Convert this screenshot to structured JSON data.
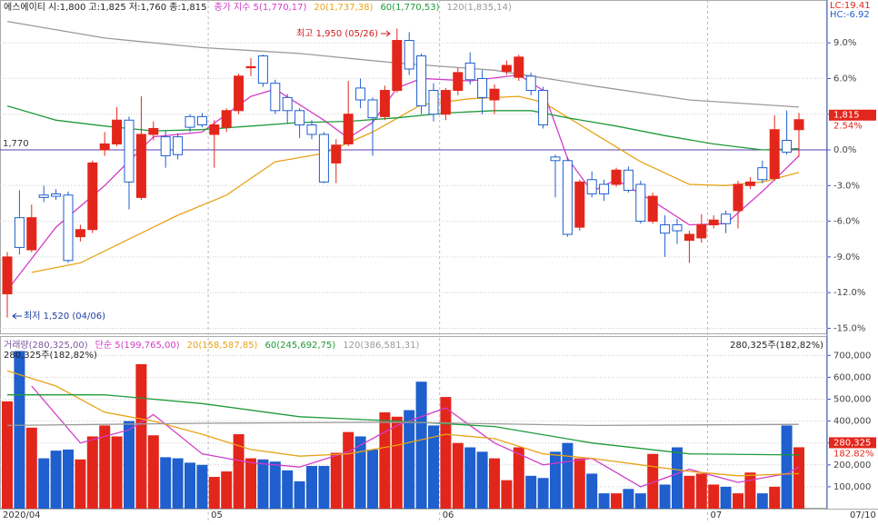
{
  "chart_data": [
    {
      "type": "candlestick",
      "title": "에스에이티 시:1,800 고:1,825 저:1,760 종:1,815",
      "categories": [
        "2020/04",
        null,
        null,
        null,
        null,
        null,
        null,
        null,
        null,
        null,
        null,
        null,
        null,
        null,
        null,
        null,
        null,
        "05",
        null,
        null,
        null,
        null,
        null,
        null,
        null,
        null,
        null,
        null,
        null,
        null,
        null,
        null,
        null,
        null,
        null,
        null,
        "06",
        null,
        null,
        null,
        null,
        null,
        null,
        null,
        null,
        null,
        null,
        null,
        null,
        null,
        null,
        null,
        null,
        null,
        null,
        null,
        null,
        null,
        "07",
        null,
        null,
        null,
        null,
        null,
        null,
        null
      ],
      "last_date": "07/10",
      "open": [
        -12.1,
        -5.7,
        -8.4,
        -3.8,
        -3.7,
        -3.8,
        -7.3,
        -6.7,
        0.0,
        0.5,
        2.5,
        -4.0,
        1.3,
        1.1,
        1.1,
        2.8,
        2.8,
        1.3,
        1.9,
        3.3,
        6.9,
        7.9,
        5.6,
        4.4,
        3.3,
        2.1,
        1.3,
        -1.1,
        0.5,
        5.2,
        4.2,
        2.8,
        5.0,
        9.2,
        7.9,
        5.0,
        3.0,
        5.0,
        7.3,
        6.0,
        4.2,
        6.6,
        6.1,
        6.2,
        5.0,
        -0.6,
        -0.9,
        -6.5,
        -2.5,
        -2.9,
        -2.9,
        -1.7,
        -2.9,
        -6.0,
        -6.3,
        -6.3,
        -7.6,
        -7.4,
        -6.3,
        -5.4,
        -5.1,
        -3.0,
        -1.5,
        -2.4,
        0.8,
        1.7
      ],
      "high": [
        -8.6,
        -3.4,
        -4.6,
        -3.0,
        -3.3,
        -3.5,
        -6.3,
        -0.9,
        1.5,
        3.6,
        2.8,
        4.5,
        2.4,
        1.6,
        1.4,
        3.0,
        3.1,
        2.5,
        3.5,
        6.4,
        7.7,
        8.0,
        5.9,
        4.7,
        3.5,
        2.5,
        1.5,
        0.9,
        5.8,
        6.0,
        4.4,
        5.4,
        10.2,
        9.9,
        8.1,
        5.6,
        5.2,
        6.9,
        8.2,
        6.7,
        5.5,
        7.5,
        8.0,
        6.5,
        5.3,
        -0.4,
        -0.6,
        -2.5,
        -1.8,
        -2.5,
        -1.5,
        -1.4,
        -2.6,
        -3.6,
        -5.5,
        -5.8,
        -6.8,
        -5.4,
        -5.5,
        -5.1,
        -2.6,
        -2.3,
        -0.9,
        2.9,
        3.3,
        3.1
      ],
      "low": [
        -14.1,
        -8.8,
        -8.6,
        -4.4,
        -4.2,
        -9.5,
        -7.7,
        -7.0,
        -0.5,
        0.3,
        -5.0,
        -4.2,
        0.8,
        -1.5,
        -0.8,
        1.5,
        1.9,
        -1.5,
        1.5,
        3.0,
        6.2,
        5.3,
        3.0,
        2.2,
        1.0,
        0.9,
        -2.8,
        -2.8,
        0.3,
        3.5,
        -0.5,
        2.5,
        4.8,
        6.3,
        3.0,
        2.4,
        2.5,
        4.6,
        5.5,
        3.0,
        3.0,
        6.3,
        5.8,
        4.6,
        1.8,
        -4.0,
        -7.3,
        -6.8,
        -4.0,
        -4.3,
        -3.1,
        -3.6,
        -6.2,
        -6.2,
        -9.0,
        -7.9,
        -9.5,
        -7.8,
        -6.6,
        -7.0,
        -6.6,
        -3.3,
        -2.8,
        -2.6,
        -0.4,
        -0.6
      ],
      "close": [
        -9.0,
        -8.2,
        -5.7,
        -4.0,
        -3.9,
        -9.3,
        -6.7,
        -1.1,
        0.5,
        2.5,
        -2.7,
        1.3,
        1.8,
        -0.5,
        -0.4,
        1.9,
        2.1,
        2.1,
        3.3,
        6.2,
        7.0,
        5.6,
        3.3,
        3.3,
        2.1,
        1.3,
        -2.7,
        0.4,
        3.0,
        4.2,
        2.7,
        5.0,
        9.2,
        6.8,
        3.7,
        3.0,
        5.0,
        6.5,
        5.9,
        4.4,
        5.1,
        7.1,
        7.8,
        5.0,
        2.1,
        -0.9,
        -7.1,
        -2.7,
        -3.7,
        -3.7,
        -1.7,
        -3.4,
        -6.0,
        -3.9,
        -7.0,
        -6.8,
        -7.1,
        -6.3,
        -5.9,
        -6.2,
        -2.9,
        -2.7,
        -2.5,
        1.7,
        -0.2,
        2.54
      ],
      "up_color": "#e3261b",
      "down_color": "#1f5fce",
      "ylim": [
        -15.5,
        12.6
      ],
      "yticks": [
        {
          "value": 9,
          "label": "9.0%"
        },
        {
          "value": 6,
          "label": "6.0%"
        },
        {
          "value": 3,
          "label": "3.0%"
        },
        {
          "value": 0,
          "label": "0.0%"
        },
        {
          "value": -3,
          "label": "-3.0%"
        },
        {
          "value": -6,
          "label": "-6.0%"
        },
        {
          "value": -9,
          "label": "-9.0%"
        },
        {
          "value": -12,
          "label": "-12.0%"
        },
        {
          "value": -15,
          "label": "-15.0%"
        }
      ],
      "grid": true,
      "baseline": {
        "value": 0,
        "label": "1,770"
      },
      "lines": [
        {
          "name": "종가 지수 5(1,770,17)",
          "color": "#d23cc8",
          "x": [
            0,
            4,
            8,
            12,
            16,
            20,
            22,
            26,
            28,
            30,
            32,
            34,
            38,
            42,
            44,
            46,
            48,
            50,
            53,
            56,
            59,
            62,
            65
          ],
          "values": [
            -11.8,
            -6.5,
            -3.0,
            1.1,
            1.5,
            4.5,
            5.1,
            2.5,
            1.0,
            2.3,
            5.2,
            6.0,
            5.8,
            6.3,
            5.0,
            -0.7,
            -3.5,
            -2.5,
            -4.3,
            -6.3,
            -6.2,
            -3.5,
            -0.5
          ]
        },
        {
          "name": "20(1,737,38)",
          "color": "#e8a317",
          "x": [
            2,
            6,
            10,
            14,
            18,
            22,
            26,
            30,
            34,
            38,
            42,
            44,
            48,
            52,
            56,
            59,
            62,
            65
          ],
          "values": [
            -10.3,
            -9.5,
            -7.5,
            -5.5,
            -3.8,
            -1.0,
            -0.3,
            1.5,
            3.8,
            4.3,
            4.5,
            4.0,
            1.5,
            -1.0,
            -2.9,
            -3.0,
            -2.7,
            -1.9
          ]
        },
        {
          "name": "60(1,770,53)",
          "color": "#1f9a3a",
          "x": [
            0,
            4,
            8,
            12,
            16,
            20,
            24,
            28,
            32,
            36,
            40,
            43,
            46,
            50,
            54,
            58,
            62,
            65
          ],
          "values": [
            3.7,
            2.5,
            2.0,
            1.6,
            1.7,
            2.0,
            2.3,
            2.4,
            2.7,
            3.1,
            3.3,
            3.3,
            2.7,
            2.0,
            1.2,
            0.5,
            0.0,
            0.1
          ]
        },
        {
          "name": "120(1,835,14)",
          "color": "#9a9a9a",
          "x": [
            0,
            8,
            16,
            24,
            32,
            40,
            48,
            56,
            65
          ],
          "values": [
            10.8,
            9.4,
            8.6,
            8.1,
            7.3,
            6.7,
            5.4,
            4.2,
            3.6
          ]
        }
      ],
      "high_note": "최고 1,950 (05/26)",
      "low_note": "최저 1,520 (04/06)",
      "tags": {
        "lc": "LC:19.41",
        "hc": "HC:-6.92",
        "last": "1,815",
        "last_pct": "2.54%"
      }
    },
    {
      "type": "bar",
      "title": "거래량(280,325,00)",
      "subtitle": "280,325주(182,82%)",
      "values": [
        490000,
        720000,
        370000,
        230000,
        265000,
        270000,
        225000,
        330000,
        380000,
        330000,
        400000,
        660000,
        335000,
        235000,
        230000,
        210000,
        200000,
        145000,
        170000,
        340000,
        230000,
        225000,
        215000,
        175000,
        125000,
        195000,
        195000,
        255000,
        350000,
        330000,
        270000,
        440000,
        420000,
        450000,
        580000,
        380000,
        510000,
        300000,
        280000,
        260000,
        230000,
        130000,
        280000,
        150000,
        140000,
        260000,
        300000,
        230000,
        160000,
        70000,
        70000,
        90000,
        70000,
        250000,
        110000,
        280000,
        150000,
        160000,
        110000,
        100000,
        70000,
        165000,
        70000,
        100000,
        380000,
        280325
      ],
      "ylim": [
        0,
        780000
      ],
      "yticks": [
        {
          "value": 100000,
          "label": "100,000"
        },
        {
          "value": 200000,
          "label": "200,000"
        },
        {
          "value": 300000,
          "label": "300,000"
        },
        {
          "value": 400000,
          "label": "400,000"
        },
        {
          "value": 500000,
          "label": "500,000"
        },
        {
          "value": 600000,
          "label": "600,000"
        },
        {
          "value": 700000,
          "label": "700,000"
        }
      ],
      "grid": true,
      "lines": [
        {
          "name": "단순 5(199,765,00)",
          "color": "#d23cc8",
          "x": [
            2,
            6,
            10,
            12,
            16,
            20,
            24,
            28,
            32,
            36,
            40,
            44,
            48,
            52,
            56,
            60,
            64,
            65
          ],
          "values": [
            560000,
            300000,
            360000,
            430000,
            250000,
            210000,
            190000,
            260000,
            380000,
            460000,
            300000,
            200000,
            230000,
            100000,
            180000,
            120000,
            160000,
            190000
          ]
        },
        {
          "name": "20(158,587,85)",
          "color": "#e8a317",
          "x": [
            0,
            4,
            8,
            12,
            16,
            20,
            24,
            28,
            32,
            36,
            40,
            44,
            48,
            52,
            56,
            60,
            65
          ],
          "values": [
            630000,
            560000,
            440000,
            400000,
            340000,
            270000,
            240000,
            250000,
            290000,
            340000,
            320000,
            250000,
            230000,
            200000,
            170000,
            150000,
            160000
          ]
        },
        {
          "name": "60(245,692,75)",
          "color": "#1f9a3a",
          "x": [
            0,
            8,
            16,
            24,
            32,
            40,
            48,
            56,
            65
          ],
          "values": [
            520000,
            520000,
            480000,
            420000,
            400000,
            375000,
            300000,
            250000,
            245000
          ]
        },
        {
          "name": "120(386,581,31)",
          "color": "#9a9a9a",
          "x": [
            0,
            16,
            32,
            48,
            65
          ],
          "values": [
            380000,
            390000,
            395000,
            380000,
            385000
          ]
        }
      ],
      "tags": {
        "last": "280,325",
        "last_pct": "182.82%"
      }
    }
  ]
}
